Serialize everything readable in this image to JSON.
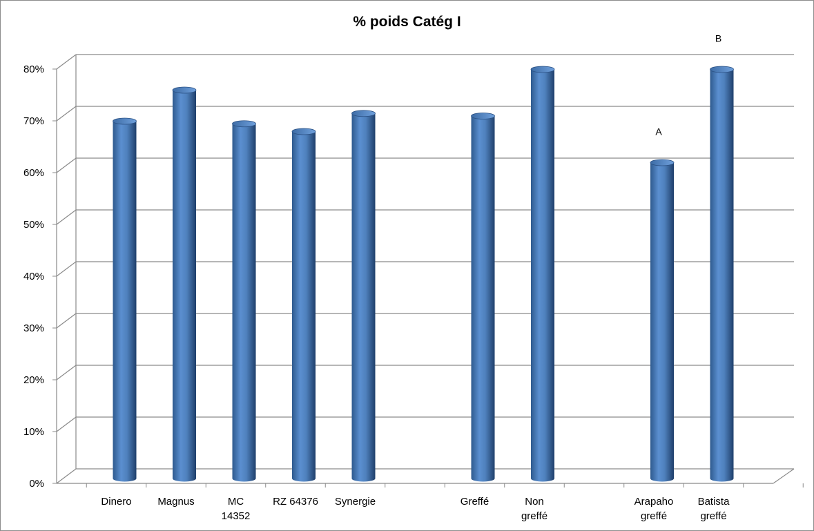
{
  "chart_data": {
    "type": "bar",
    "title": "% poids Catég I",
    "xlabel": "",
    "ylabel": "",
    "ylim": [
      0,
      0.8
    ],
    "y_ticks": [
      "0%",
      "10%",
      "20%",
      "30%",
      "40%",
      "50%",
      "60%",
      "70%",
      "80%"
    ],
    "grid": true,
    "legend": "none",
    "categories": [
      "Dinero",
      "Magnus",
      "MC 14352",
      "RZ 64376",
      "Synergie",
      "",
      "Greffé",
      "Non greffé",
      "",
      "Arapaho greffé",
      "Batista greffé"
    ],
    "category_lines": [
      [
        "Dinero"
      ],
      [
        "Magnus"
      ],
      [
        "MC",
        "14352"
      ],
      [
        "RZ 64376"
      ],
      [
        "Synergie"
      ],
      [],
      [
        "Greffé"
      ],
      [
        "Non",
        "greffé"
      ],
      [],
      [
        "Arapaho",
        "greffé"
      ],
      [
        "Batista",
        "greffé"
      ]
    ],
    "values": [
      0.69,
      0.75,
      0.685,
      0.67,
      0.705,
      null,
      0.7,
      0.79,
      null,
      0.61,
      0.79
    ],
    "annotations": [
      "",
      "",
      "",
      "",
      "",
      "",
      "",
      "",
      "",
      "A",
      "B"
    ],
    "bar_color": "#4f81bd"
  }
}
